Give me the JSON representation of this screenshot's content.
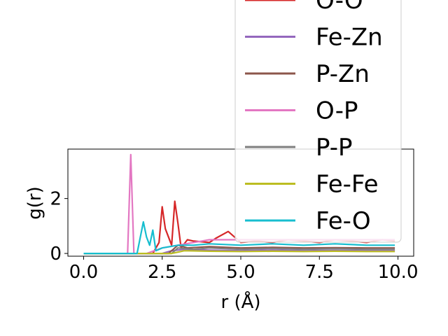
{
  "chart_data": {
    "type": "line",
    "title": "",
    "xlabel": "r (Å)",
    "ylabel": "g(r)",
    "xlim": [
      -0.5,
      10.5
    ],
    "ylim": [
      -0.1,
      3.8
    ],
    "xticks": [
      "0.0",
      "2.5",
      "5.0",
      "7.5",
      "10.0"
    ],
    "yticks": [
      "0",
      "2"
    ],
    "grid": false,
    "legend_position": "upper-right",
    "series": [
      {
        "name": "O-O",
        "color": "#d62728",
        "x": [
          0,
          2.2,
          2.4,
          2.5,
          2.6,
          2.8,
          2.9,
          3.0,
          3.1,
          3.3,
          3.5,
          4.0,
          4.2,
          4.6,
          5.0,
          5.5,
          6.0,
          6.5,
          7.0,
          7.5,
          8.0,
          8.5,
          9.0,
          9.5,
          9.9
        ],
        "y": [
          0,
          0,
          0.4,
          1.7,
          0.9,
          0.3,
          1.9,
          1.1,
          0.2,
          0.5,
          0.45,
          0.4,
          0.55,
          0.8,
          0.4,
          0.45,
          0.4,
          0.5,
          0.45,
          0.4,
          0.5,
          0.45,
          0.4,
          0.5,
          0.45
        ]
      },
      {
        "name": "Fe-Zn",
        "color": "#9467bd",
        "x": [
          0,
          2.5,
          2.8,
          3.2,
          4.0,
          5.0,
          6.0,
          7.0,
          8.0,
          9.0,
          9.9
        ],
        "y": [
          0,
          0,
          0.1,
          0.15,
          0.12,
          0.1,
          0.12,
          0.1,
          0.11,
          0.1,
          0.1
        ]
      },
      {
        "name": "P-Zn",
        "color": "#8c564b",
        "x": [
          0,
          2.7,
          3.0,
          3.3,
          4.0,
          5.0,
          6.0,
          7.0,
          8.0,
          9.0,
          9.9
        ],
        "y": [
          0,
          0,
          0.3,
          0.2,
          0.25,
          0.2,
          0.22,
          0.2,
          0.21,
          0.2,
          0.2
        ]
      },
      {
        "name": "O-P",
        "color": "#e377c2",
        "x": [
          0,
          1.4,
          1.5,
          1.6,
          2.0,
          2.5,
          3.0,
          3.5,
          4.0,
          5.0,
          6.0,
          7.0,
          8.0,
          9.0,
          9.9
        ],
        "y": [
          0,
          0,
          3.6,
          0,
          0,
          0.2,
          0.3,
          0.4,
          0.5,
          0.5,
          0.5,
          0.5,
          0.5,
          0.5,
          0.5
        ]
      },
      {
        "name": "P-P",
        "color": "#7f7f7f",
        "x": [
          0,
          2.8,
          3.0,
          3.5,
          4.0,
          5.0,
          6.0,
          7.0,
          8.0,
          9.0,
          9.9
        ],
        "y": [
          0,
          0,
          0.2,
          0.15,
          0.2,
          0.15,
          0.18,
          0.15,
          0.17,
          0.15,
          0.15
        ]
      },
      {
        "name": "Fe-Fe",
        "color": "#bcbd22",
        "x": [
          0,
          2.8,
          3.2,
          4.0,
          5.0,
          6.0,
          7.0,
          8.0,
          9.0,
          9.9
        ],
        "y": [
          0,
          0,
          0.1,
          0.08,
          0.07,
          0.08,
          0.07,
          0.08,
          0.07,
          0.07
        ]
      },
      {
        "name": "Fe-O",
        "color": "#17becf",
        "x": [
          0,
          1.7,
          1.9,
          2.0,
          2.1,
          2.2,
          2.3,
          2.5,
          3.0,
          3.5,
          4.0,
          5.0,
          6.0,
          7.0,
          8.0,
          9.0,
          9.9
        ],
        "y": [
          0,
          0,
          1.15,
          0.6,
          0.3,
          0.85,
          0.1,
          0.2,
          0.3,
          0.3,
          0.35,
          0.3,
          0.35,
          0.3,
          0.35,
          0.3,
          0.3
        ]
      }
    ]
  }
}
